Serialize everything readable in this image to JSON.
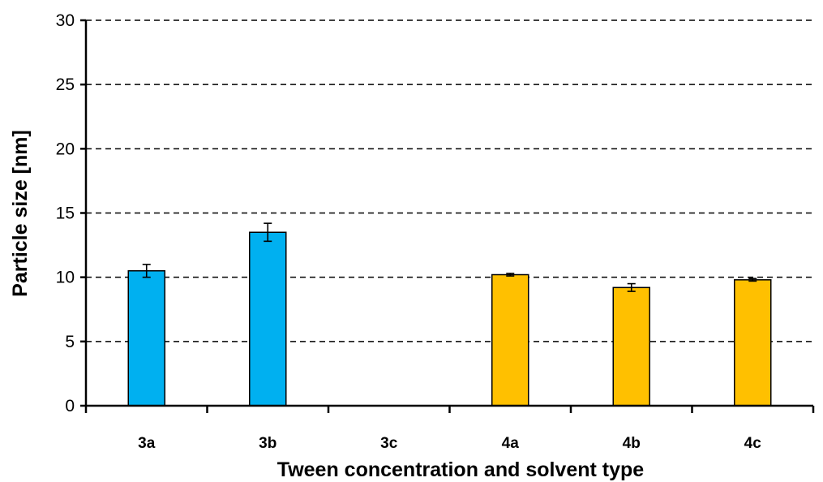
{
  "chart_data": {
    "type": "bar",
    "title": "",
    "xlabel": "Tween concentration and solvent type",
    "ylabel": "Particle size [nm]",
    "ylim": [
      0,
      30
    ],
    "yticks": [
      0,
      5,
      10,
      15,
      20,
      25,
      30
    ],
    "grid": "horizontal-dashed",
    "categories": [
      "3a",
      "3b",
      "3c",
      "4a",
      "4b",
      "4c"
    ],
    "values": [
      10.5,
      13.5,
      null,
      10.2,
      9.2,
      9.8
    ],
    "errors": [
      0.5,
      0.7,
      null,
      0.1,
      0.3,
      0.1
    ],
    "colors": [
      "#00B0F0",
      "#00B0F0",
      null,
      "#FFC000",
      "#FFC000",
      "#FFC000"
    ]
  }
}
